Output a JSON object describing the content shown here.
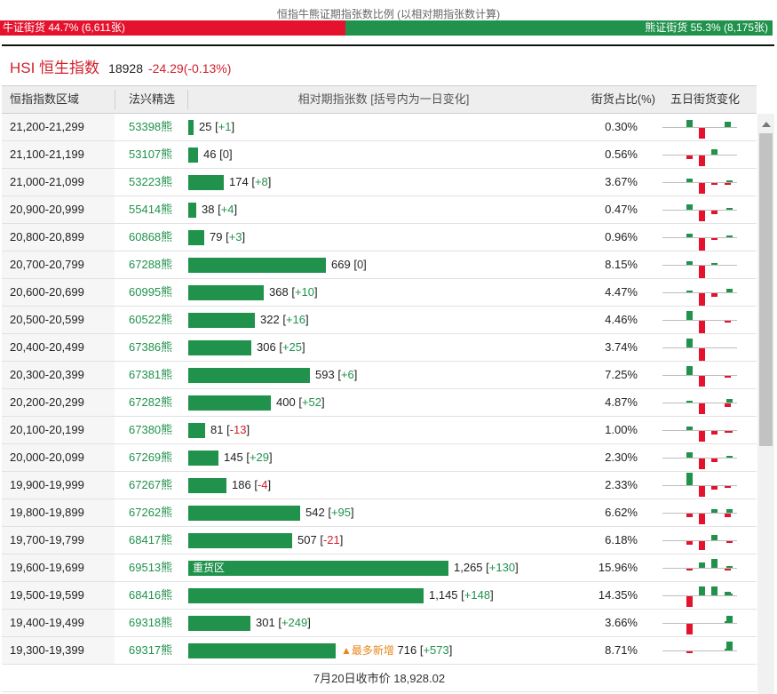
{
  "ratio": {
    "title": "恒指牛熊证期指张数比例 (以相对期指张数计算)",
    "bull_label": "牛证街货 44.7% (6,611张)",
    "bear_label": "熊证街货 55.3% (8,175张)",
    "bull_fraction": 0.447,
    "bull_color": "#e4122d",
    "bear_color": "#20924c"
  },
  "index": {
    "name": "HSI 恒生指数",
    "price": "18928",
    "change": "-24.29(-0.13%)"
  },
  "table": {
    "headers": {
      "range": "恒指指数区域",
      "code": "法兴精选",
      "contracts": "相对期指张数 [括号内为一日变化]",
      "pct": "街货占比(%)",
      "five_day": "五日街货变化"
    },
    "max_contracts": 1265,
    "rows": [
      {
        "range": "21,200-21,299",
        "code": "53398熊",
        "contracts": "25",
        "change": "+1",
        "contracts_value": 25,
        "pct": "0.30%",
        "tag": "",
        "five_day": [
          4,
          -6,
          0,
          3,
          0
        ]
      },
      {
        "range": "21,100-21,199",
        "code": "53107熊",
        "contracts": "46",
        "change": "0",
        "contracts_value": 46,
        "pct": "0.56%",
        "tag": "",
        "five_day": [
          -2,
          -6,
          3,
          0,
          0
        ]
      },
      {
        "range": "21,000-21,099",
        "code": "53223熊",
        "contracts": "174",
        "change": "+8",
        "contracts_value": 174,
        "pct": "3.67%",
        "tag": "",
        "five_day": [
          2,
          -6,
          -1,
          -1,
          1
        ]
      },
      {
        "range": "20,900-20,999",
        "code": "55414熊",
        "contracts": "38",
        "change": "+4",
        "contracts_value": 38,
        "pct": "0.47%",
        "tag": "",
        "five_day": [
          3,
          -6,
          -2,
          0,
          1
        ]
      },
      {
        "range": "20,800-20,899",
        "code": "60868熊",
        "contracts": "79",
        "change": "+3",
        "contracts_value": 79,
        "pct": "0.96%",
        "tag": "",
        "five_day": [
          2,
          -7,
          -1,
          0,
          1
        ]
      },
      {
        "range": "20,700-20,799",
        "code": "67288熊",
        "contracts": "669",
        "change": "0",
        "contracts_value": 669,
        "pct": "8.15%",
        "tag": "",
        "five_day": [
          2,
          -7,
          1,
          0,
          0
        ]
      },
      {
        "range": "20,600-20,699",
        "code": "60995熊",
        "contracts": "368",
        "change": "+10",
        "contracts_value": 368,
        "pct": "4.47%",
        "tag": "",
        "five_day": [
          1,
          -7,
          -2,
          0,
          2
        ]
      },
      {
        "range": "20,500-20,599",
        "code": "60522熊",
        "contracts": "322",
        "change": "+16",
        "contracts_value": 322,
        "pct": "4.46%",
        "tag": "",
        "five_day": [
          5,
          -7,
          0,
          -1,
          0
        ]
      },
      {
        "range": "20,400-20,499",
        "code": "67386熊",
        "contracts": "306",
        "change": "+25",
        "contracts_value": 306,
        "pct": "3.74%",
        "tag": "",
        "five_day": [
          5,
          -7,
          0,
          0,
          0
        ]
      },
      {
        "range": "20,300-20,399",
        "code": "67381熊",
        "contracts": "593",
        "change": "+6",
        "contracts_value": 593,
        "pct": "7.25%",
        "tag": "",
        "five_day": [
          5,
          -6,
          0,
          -1,
          0
        ]
      },
      {
        "range": "20,200-20,299",
        "code": "67282熊",
        "contracts": "400",
        "change": "+52",
        "contracts_value": 400,
        "pct": "4.87%",
        "tag": "",
        "five_day": [
          1,
          -6,
          0,
          -2,
          2
        ]
      },
      {
        "range": "20,100-20,199",
        "code": "67380熊",
        "contracts": "81",
        "change": "-13",
        "contracts_value": 81,
        "pct": "1.00%",
        "tag": "",
        "five_day": [
          2,
          -6,
          -2,
          -1,
          -1
        ]
      },
      {
        "range": "20,000-20,099",
        "code": "67269熊",
        "contracts": "145",
        "change": "+29",
        "contracts_value": 145,
        "pct": "2.30%",
        "tag": "",
        "five_day": [
          3,
          -6,
          -2,
          0,
          1
        ]
      },
      {
        "range": "19,900-19,999",
        "code": "67267熊",
        "contracts": "186",
        "change": "-4",
        "contracts_value": 186,
        "pct": "2.33%",
        "tag": "",
        "five_day": [
          7,
          -6,
          -2,
          -1,
          0
        ]
      },
      {
        "range": "19,800-19,899",
        "code": "67262熊",
        "contracts": "542",
        "change": "+95",
        "contracts_value": 542,
        "pct": "6.62%",
        "tag": "",
        "five_day": [
          -2,
          -6,
          2,
          -2,
          2
        ]
      },
      {
        "range": "19,700-19,799",
        "code": "68417熊",
        "contracts": "507",
        "change": "-21",
        "contracts_value": 507,
        "pct": "6.18%",
        "tag": "",
        "five_day": [
          -2,
          -5,
          3,
          0,
          -1
        ]
      },
      {
        "range": "19,600-19,699",
        "code": "69513熊",
        "contracts": "1,265",
        "change": "+130",
        "contracts_value": 1265,
        "pct": "15.96%",
        "tag": "重货区",
        "five_day": [
          -1,
          3,
          5,
          -1,
          1
        ]
      },
      {
        "range": "19,500-19,599",
        "code": "68416熊",
        "contracts": "1,145",
        "change": "+148",
        "contracts_value": 1145,
        "pct": "14.35%",
        "tag": "",
        "five_day": [
          -6,
          5,
          5,
          2,
          1
        ]
      },
      {
        "range": "19,400-19,499",
        "code": "69318熊",
        "contracts": "301",
        "change": "+249",
        "contracts_value": 301,
        "pct": "3.66%",
        "tag": "",
        "five_day": [
          -6,
          0,
          0,
          1,
          4
        ]
      },
      {
        "range": "19,300-19,399",
        "code": "69317熊",
        "contracts": "716",
        "change": "+573",
        "contracts_value": 716,
        "pct": "8.71%",
        "tag": "▲最多新增",
        "five_day": [
          -1,
          0,
          0,
          1,
          5
        ]
      }
    ],
    "footer": "7月20日收市价 18,928.02"
  }
}
